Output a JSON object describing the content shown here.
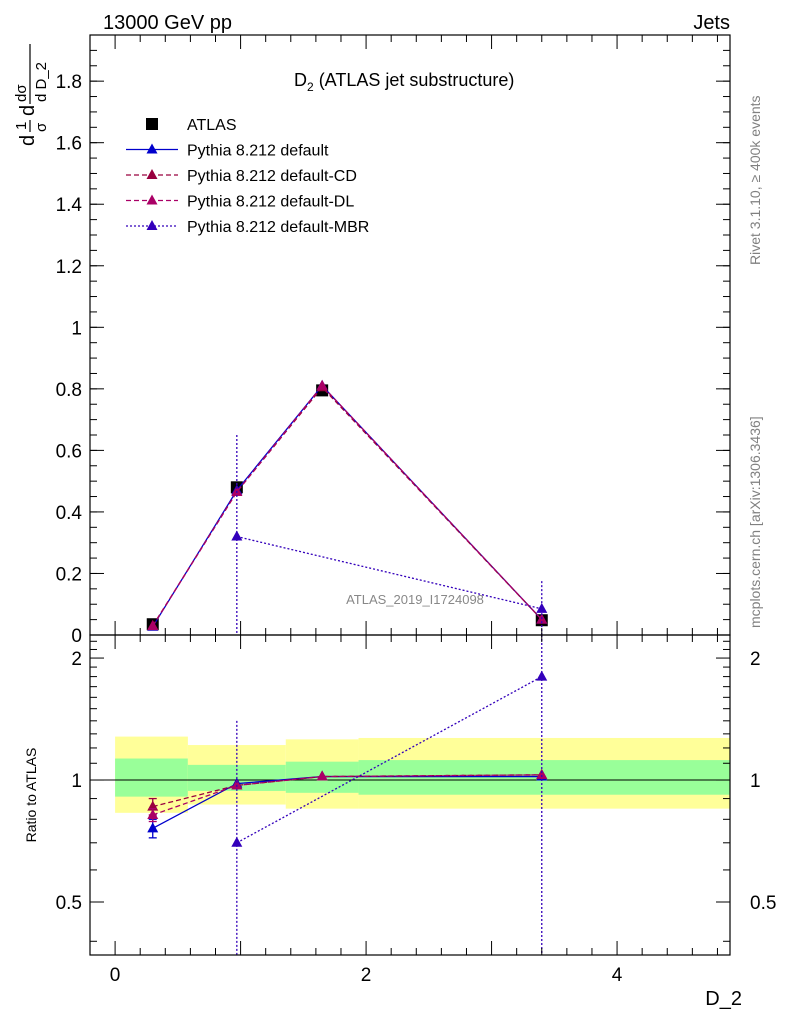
{
  "header": {
    "left": "13000 GeV pp",
    "right": "Jets"
  },
  "main_title": {
    "symbol": "D",
    "sub": "2",
    "rest": " (ATLAS jet substructure)"
  },
  "ylabel_main": {
    "frac1_top": "1",
    "frac1_bot": "σ",
    "frac2_top": "dσ",
    "frac2_bot": "d D_2"
  },
  "ylabel_ratio": "Ratio to ATLAS",
  "xlabel": "D_2",
  "side_texts": {
    "rivet": "Rivet 3.1.10, ≥ 400k events",
    "mcplots": "mcplots.cern.ch [arXiv:1306.3436]"
  },
  "watermark": "ATLAS_2019_I1724098",
  "colors": {
    "atlas": "#000000",
    "default": "#0000cc",
    "cd": "#99003f",
    "dl": "#aa0066",
    "mbr": "#3300bb",
    "band_inner": "#99ff99",
    "band_outer": "#ffff99"
  },
  "chart_data": [
    {
      "type": "scatter",
      "panel": "main",
      "xlim": [
        -0.2,
        4.9
      ],
      "ylim": [
        0,
        1.95
      ],
      "yticks": [
        0,
        0.2,
        0.4,
        0.6,
        0.8,
        1,
        1.2,
        1.4,
        1.6,
        1.8
      ],
      "ytick_labels": [
        "0",
        "0.2",
        "0.4",
        "0.6",
        "0.8",
        "1",
        "1.2",
        "1.4",
        "1.6",
        "1.8"
      ],
      "series": [
        {
          "name": "ATLAS",
          "key": "atlas",
          "marker": "square",
          "x": [
            0.3,
            0.97,
            1.65,
            3.4
          ],
          "y": [
            0.035,
            0.48,
            0.795,
            0.048
          ]
        },
        {
          "name": "Pythia 8.212 default",
          "key": "default",
          "line": "solid",
          "marker": "triangle",
          "x": [
            0.3,
            0.97,
            1.65,
            3.4
          ],
          "y": [
            0.027,
            0.47,
            0.81,
            0.05
          ]
        },
        {
          "name": "Pythia 8.212 default-CD",
          "key": "cd",
          "line": "dashed",
          "marker": "triangle",
          "x": [
            0.3,
            0.97,
            1.65,
            3.4
          ],
          "y": [
            0.03,
            0.465,
            0.805,
            0.05
          ]
        },
        {
          "name": "Pythia 8.212 default-DL",
          "key": "dl",
          "line": "dashed",
          "marker": "triangle",
          "x": [
            0.3,
            0.97,
            1.65,
            3.4
          ],
          "y": [
            0.029,
            0.465,
            0.81,
            0.05
          ]
        },
        {
          "name": "Pythia 8.212 default-MBR",
          "key": "mbr",
          "line": "dotted",
          "marker": "triangle",
          "x": [
            0.97,
            3.4
          ],
          "y": [
            0.32,
            0.085
          ],
          "yerr": [
            0.33,
            0.09
          ]
        }
      ]
    },
    {
      "type": "scatter",
      "panel": "ratio",
      "xlim": [
        -0.2,
        4.9
      ],
      "ylim": [
        0.37,
        2.28
      ],
      "xticks": [
        0,
        2,
        4
      ],
      "xtick_labels": [
        "0",
        "2",
        "4"
      ],
      "yticks": [
        0.5,
        1,
        2
      ],
      "ytick_labels": [
        "0.5",
        "1",
        "2"
      ],
      "bands": [
        {
          "x_lo": 0.0,
          "x_hi": 0.58,
          "inner": [
            0.91,
            1.13
          ],
          "outer": [
            0.83,
            1.28
          ]
        },
        {
          "x_lo": 0.58,
          "x_hi": 1.36,
          "inner": [
            0.94,
            1.09
          ],
          "outer": [
            0.87,
            1.22
          ]
        },
        {
          "x_lo": 1.36,
          "x_hi": 1.94,
          "inner": [
            0.93,
            1.11
          ],
          "outer": [
            0.85,
            1.26
          ]
        },
        {
          "x_lo": 1.94,
          "x_hi": 4.9,
          "inner": [
            0.92,
            1.12
          ],
          "outer": [
            0.85,
            1.27
          ]
        }
      ],
      "series": [
        {
          "name": "Pythia 8.212 default",
          "key": "default",
          "line": "solid",
          "x": [
            0.3,
            0.97,
            1.65,
            3.4
          ],
          "y": [
            0.76,
            0.98,
            1.02,
            1.02
          ],
          "yerr": [
            0.04,
            0,
            0,
            0
          ]
        },
        {
          "name": "Pythia 8.212 default-CD",
          "key": "cd",
          "line": "dashed",
          "x": [
            0.3,
            0.97,
            1.65,
            3.4
          ],
          "y": [
            0.86,
            0.97,
            1.02,
            1.03
          ],
          "yerr": [
            0.04,
            0,
            0,
            0
          ]
        },
        {
          "name": "Pythia 8.212 default-DL",
          "key": "dl",
          "line": "dashed",
          "x": [
            0.3,
            0.97,
            1.65,
            3.4
          ],
          "y": [
            0.82,
            0.97,
            1.02,
            1.03
          ],
          "yerr": [
            0.03,
            0,
            0,
            0
          ]
        },
        {
          "name": "Pythia 8.212 default-MBR",
          "key": "mbr",
          "line": "dotted",
          "x": [
            0.97,
            3.4
          ],
          "y": [
            0.7,
            1.8
          ],
          "yerr": [
            0.7,
            1.8
          ]
        }
      ]
    }
  ]
}
